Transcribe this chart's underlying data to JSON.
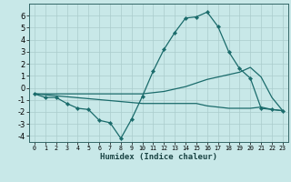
{
  "xlabel": "Humidex (Indice chaleur)",
  "x_ticks": [
    0,
    1,
    2,
    3,
    4,
    5,
    6,
    7,
    8,
    9,
    10,
    11,
    12,
    13,
    14,
    15,
    16,
    17,
    18,
    19,
    20,
    21,
    22,
    23
  ],
  "xlim": [
    -0.5,
    23.5
  ],
  "ylim": [
    -4.5,
    7.0
  ],
  "y_ticks": [
    -4,
    -3,
    -2,
    -1,
    0,
    1,
    2,
    3,
    4,
    5,
    6
  ],
  "bg_color": "#c8e8e8",
  "line_color": "#1a6b6b",
  "grid_color": "#aacccc",
  "series1_x": [
    0,
    1,
    2,
    3,
    4,
    5,
    6,
    7,
    8,
    9,
    10,
    11,
    12,
    13,
    14,
    15,
    16,
    17,
    18,
    19,
    20,
    21,
    22,
    23
  ],
  "series1_y": [
    -0.5,
    -0.8,
    -0.8,
    -1.3,
    -1.7,
    -1.8,
    -2.7,
    -2.9,
    -4.2,
    -2.6,
    -0.7,
    1.4,
    3.2,
    4.6,
    5.8,
    5.9,
    6.3,
    5.1,
    3.0,
    1.6,
    0.8,
    -1.7,
    -1.8,
    -1.9
  ],
  "series2_x": [
    0,
    10,
    11,
    12,
    13,
    14,
    15,
    16,
    17,
    18,
    19,
    20,
    21,
    22,
    23
  ],
  "series2_y": [
    -0.5,
    -0.5,
    -0.4,
    -0.3,
    -0.1,
    0.1,
    0.4,
    0.7,
    0.9,
    1.1,
    1.3,
    1.7,
    0.9,
    -0.8,
    -1.9
  ],
  "series3_x": [
    0,
    10,
    11,
    12,
    13,
    14,
    15,
    16,
    17,
    18,
    19,
    20,
    21,
    22,
    23
  ],
  "series3_y": [
    -0.5,
    -1.3,
    -1.3,
    -1.3,
    -1.3,
    -1.3,
    -1.3,
    -1.5,
    -1.6,
    -1.7,
    -1.7,
    -1.7,
    -1.6,
    -1.8,
    -1.9
  ]
}
